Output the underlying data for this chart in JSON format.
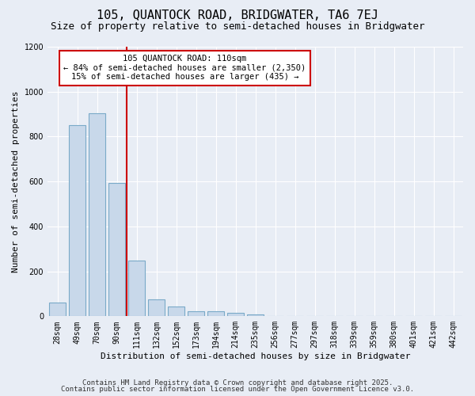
{
  "title": "105, QUANTOCK ROAD, BRIDGWATER, TA6 7EJ",
  "subtitle": "Size of property relative to semi-detached houses in Bridgwater",
  "xlabel": "Distribution of semi-detached houses by size in Bridgwater",
  "ylabel": "Number of semi-detached properties",
  "categories": [
    "28sqm",
    "49sqm",
    "70sqm",
    "90sqm",
    "111sqm",
    "132sqm",
    "152sqm",
    "173sqm",
    "194sqm",
    "214sqm",
    "235sqm",
    "256sqm",
    "277sqm",
    "297sqm",
    "318sqm",
    "339sqm",
    "359sqm",
    "380sqm",
    "401sqm",
    "421sqm",
    "442sqm"
  ],
  "values": [
    60,
    850,
    905,
    595,
    248,
    75,
    42,
    22,
    22,
    15,
    8,
    0,
    0,
    0,
    0,
    0,
    0,
    0,
    0,
    0,
    0
  ],
  "bar_color": "#c8d8ea",
  "bar_edge_color": "#7aaac8",
  "vline_color": "#cc0000",
  "vline_position": 3.5,
  "annotation_line1": "105 QUANTOCK ROAD: 110sqm",
  "annotation_line2": "← 84% of semi-detached houses are smaller (2,350)",
  "annotation_line3": "15% of semi-detached houses are larger (435) →",
  "annotation_box_color": "#ffffff",
  "annotation_box_edge": "#cc0000",
  "ylim": [
    0,
    1200
  ],
  "yticks": [
    0,
    200,
    400,
    600,
    800,
    1000,
    1200
  ],
  "footer1": "Contains HM Land Registry data © Crown copyright and database right 2025.",
  "footer2": "Contains public sector information licensed under the Open Government Licence v3.0.",
  "bg_color": "#e8edf5",
  "plot_bg_color": "#e8edf5",
  "title_fontsize": 11,
  "subtitle_fontsize": 9,
  "tick_fontsize": 7,
  "ylabel_fontsize": 8,
  "xlabel_fontsize": 8,
  "footer_fontsize": 6.5,
  "ann_fontsize": 7.5
}
